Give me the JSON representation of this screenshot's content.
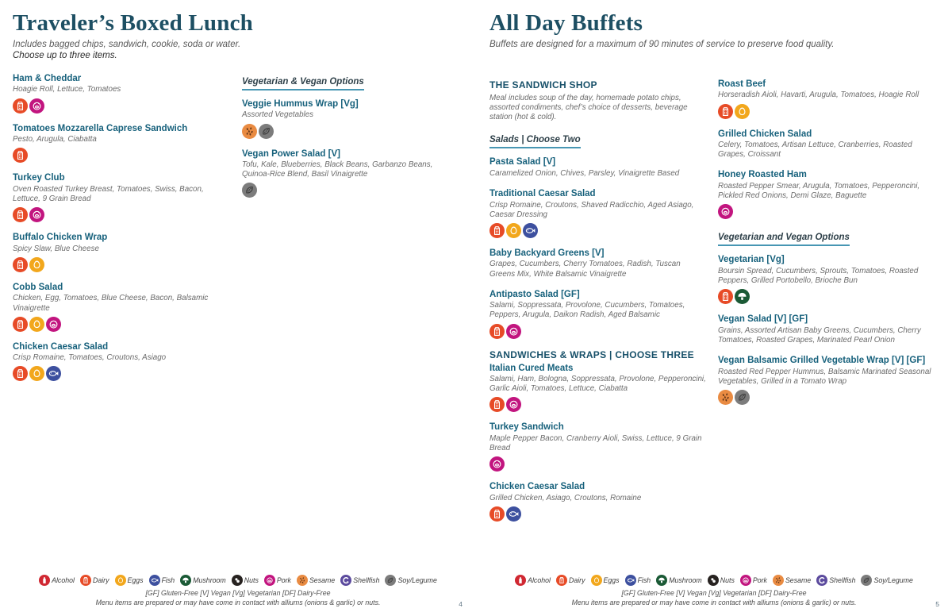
{
  "badge_colors": {
    "alcohol": "#d02832",
    "dairy": "#e74b27",
    "eggs": "#f2a71c",
    "fish": "#3d509f",
    "mushroom": "#1b5a36",
    "nuts": "#272220",
    "pork": "#c2157f",
    "sesame": "#e98b42",
    "shellfish": "#5c4b9e",
    "soy": "#7c7c7c"
  },
  "pages": [
    {
      "title": "Traveler’s Boxed Lunch",
      "subtitle": "Includes bagged chips, sandwich, cookie, soda or water.",
      "subtitle2": "Choose up to three items.",
      "page_number": "4",
      "columns": [
        {
          "blocks": [
            {
              "type": "item",
              "name": "Ham & Cheddar",
              "desc": "Hoagie Roll, Lettuce, Tomatoes",
              "badges": [
                "dairy",
                "pork"
              ]
            },
            {
              "type": "item",
              "name": "Tomatoes Mozzarella Caprese Sandwich",
              "desc": "Pesto, Arugula, Ciabatta",
              "badges": [
                "dairy"
              ]
            },
            {
              "type": "item",
              "name": "Turkey Club",
              "desc": "Oven Roasted Turkey Breast, Tomatoes, Swiss, Bacon, Lettuce, 9 Grain Bread",
              "badges": [
                "dairy",
                "pork"
              ]
            },
            {
              "type": "item",
              "name": "Buffalo Chicken Wrap",
              "desc": "Spicy Slaw, Blue Cheese",
              "badges": [
                "dairy",
                "eggs"
              ]
            },
            {
              "type": "item",
              "name": "Cobb Salad",
              "desc": "Chicken, Egg, Tomatoes, Blue Cheese, Bacon, Balsamic Vinaigrette",
              "badges": [
                "dairy",
                "eggs",
                "pork"
              ]
            },
            {
              "type": "item",
              "name": "Chicken Caesar Salad",
              "desc": "Crisp Romaine, Tomatoes, Croutons, Asiago",
              "badges": [
                "dairy",
                "eggs",
                "fish"
              ]
            }
          ]
        },
        {
          "blocks": [
            {
              "type": "uheader",
              "text": "Vegetarian & Vegan Options"
            },
            {
              "type": "item",
              "name": "Veggie Hummus Wrap [Vg]",
              "desc": "Assorted Vegetables",
              "badges": [
                "sesame",
                "soy"
              ]
            },
            {
              "type": "item",
              "name": "Vegan Power Salad [V]",
              "desc": "Tofu, Kale, Blueberries, Black Beans, Garbanzo Beans, Quinoa-Rice Blend, Basil Vinaigrette",
              "badges": [
                "soy"
              ]
            }
          ]
        }
      ]
    },
    {
      "title": "All Day Buffets",
      "subtitle": "Buffets are designed for a maximum of 90 minutes of service to preserve food quality.",
      "subtitle2": "",
      "page_number": "5",
      "columns": [
        {
          "blocks": [
            {
              "type": "caps",
              "text": "THE SANDWICH SHOP"
            },
            {
              "type": "desc",
              "text": "Meal includes soup of the day, homemade potato chips, assorted condiments, chef’s choice of desserts, beverage station (hot & cold)."
            },
            {
              "type": "uheader",
              "text": "Salads | Choose Two"
            },
            {
              "type": "item",
              "name": "Pasta Salad [V]",
              "desc": "Caramelized Onion, Chives, Parsley, Vinaigrette Based",
              "badges": []
            },
            {
              "type": "item",
              "name": "Traditional Caesar Salad",
              "desc": "Crisp Romaine, Croutons, Shaved Radicchio, Aged Asiago, Caesar Dressing",
              "badges": [
                "dairy",
                "eggs",
                "fish"
              ]
            },
            {
              "type": "item",
              "name": "Baby Backyard Greens [V]",
              "desc": "Grapes, Cucumbers, Cherry Tomatoes, Radish, Tuscan Greens Mix, White Balsamic Vinaigrette",
              "badges": []
            },
            {
              "type": "item",
              "name": "Antipasto Salad [GF]",
              "desc": "Salami, Soppressata, Provolone, Cucumbers, Tomatoes, Peppers, Arugula, Daikon Radish, Aged Balsamic",
              "badges": [
                "dairy",
                "pork"
              ]
            },
            {
              "type": "caps2",
              "text": "SANDWICHES & WRAPS | CHOOSE THREE"
            },
            {
              "type": "item",
              "name": "Italian Cured Meats",
              "desc": "Salami, Ham, Bologna, Soppressata, Provolone, Pepperoncini, Garlic Aioli, Tomatoes, Lettuce, Ciabatta",
              "badges": [
                "dairy",
                "pork"
              ]
            },
            {
              "type": "item",
              "name": "Turkey Sandwich",
              "desc": "Maple Pepper Bacon, Cranberry Aioli, Swiss, Lettuce, 9 Grain Bread",
              "badges": [
                "pork"
              ]
            },
            {
              "type": "item",
              "name": "Chicken Caesar Salad",
              "desc": "Grilled Chicken, Asiago, Croutons, Romaine",
              "badges": [
                "dairy",
                "fish"
              ]
            }
          ]
        },
        {
          "blocks": [
            {
              "type": "item",
              "name": "Roast Beef",
              "desc": "Horseradish Aioli, Havarti, Arugula, Tomatoes, Hoagie Roll",
              "badges": [
                "dairy",
                "eggs"
              ]
            },
            {
              "type": "item",
              "name": "Grilled Chicken Salad",
              "desc": "Celery, Tomatoes, Artisan Lettuce, Cranberries, Roasted Grapes, Croissant",
              "badges": []
            },
            {
              "type": "item",
              "name": "Honey Roasted Ham",
              "desc": "Roasted Pepper Smear, Arugula, Tomatoes, Pepperoncini, Pickled Red Onions, Demi Glaze, Baguette",
              "badges": [
                "pork"
              ]
            },
            {
              "type": "uheader",
              "text": "Vegetarian and Vegan Options"
            },
            {
              "type": "item",
              "name": "Vegetarian [Vg]",
              "desc": "Boursin Spread, Cucumbers, Sprouts, Tomatoes, Roasted Peppers, Grilled Portobello, Brioche Bun",
              "badges": [
                "dairy",
                "mushroom"
              ]
            },
            {
              "type": "item",
              "name": "Vegan Salad [V] [GF]",
              "desc": "Grains, Assorted Artisan Baby Greens, Cucumbers, Cherry Tomatoes, Roasted Grapes, Marinated Pearl Onion",
              "badges": []
            },
            {
              "type": "item",
              "name": "Vegan Balsamic Grilled Vegetable Wrap [V] [GF]",
              "desc": "Roasted Red Pepper Hummus, Balsamic Marinated Seasonal Vegetables, Grilled in a Tomato Wrap",
              "badges": [
                "sesame",
                "soy"
              ]
            }
          ]
        }
      ]
    }
  ],
  "footer": {
    "legend": [
      {
        "key": "alcohol",
        "label": "Alcohol"
      },
      {
        "key": "dairy",
        "label": "Dairy"
      },
      {
        "key": "eggs",
        "label": "Eggs"
      },
      {
        "key": "fish",
        "label": "Fish"
      },
      {
        "key": "mushroom",
        "label": "Mushroom"
      },
      {
        "key": "nuts",
        "label": "Nuts"
      },
      {
        "key": "pork",
        "label": "Pork"
      },
      {
        "key": "sesame",
        "label": "Sesame"
      },
      {
        "key": "shellfish",
        "label": "Shellfish"
      },
      {
        "key": "soy",
        "label": "Soy/Legume"
      }
    ],
    "line1": "[GF] Gluten-Free [V] Vegan [Vg] Vegetarian [DF] Dairy-Free",
    "line2": "Menu items are prepared or may have come in contact with alliums (onions & garlic) or nuts."
  }
}
